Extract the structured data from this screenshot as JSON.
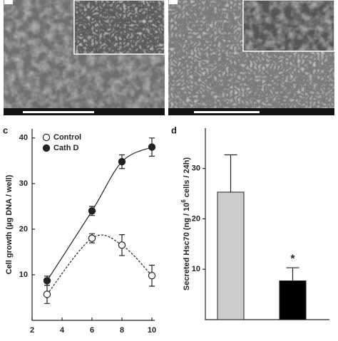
{
  "panels": {
    "c": "c",
    "d": "d"
  },
  "chart_data": [
    {
      "type": "line",
      "ylabel": "Cell growth (µg DNA / well)",
      "x": [
        3,
        6,
        8,
        10
      ],
      "xlim": [
        2,
        10
      ],
      "xticks": [
        2,
        4,
        6,
        8,
        10
      ],
      "ylim": [
        0,
        42
      ],
      "yticks": [
        10,
        20,
        30,
        40
      ],
      "legend": "top-left",
      "series": [
        {
          "name": "Control",
          "color": "#222222",
          "marker": "open",
          "dashed": true,
          "values": [
            5.7,
            18,
            16.5,
            9.8
          ],
          "errors": [
            2,
            1,
            2.3,
            2.3
          ]
        },
        {
          "name": "Cath D",
          "color": "#222222",
          "marker": "filled",
          "dashed": false,
          "values": [
            8.7,
            24,
            34.8,
            38
          ],
          "errors": [
            1,
            1,
            1.5,
            2
          ]
        }
      ]
    },
    {
      "type": "bar",
      "ylabel": [
        "Secreted Hsc70 (ng / 10",
        "6",
        "cells / 24h)"
      ],
      "categories": [
        null,
        null
      ],
      "values": [
        25.3,
        7.7
      ],
      "errors": [
        7.4,
        2.6
      ],
      "colors": [
        "#cccccc",
        "#000000"
      ],
      "ylim": [
        0,
        38
      ],
      "yticks": [
        10,
        20,
        30
      ],
      "annotation": "*"
    }
  ]
}
